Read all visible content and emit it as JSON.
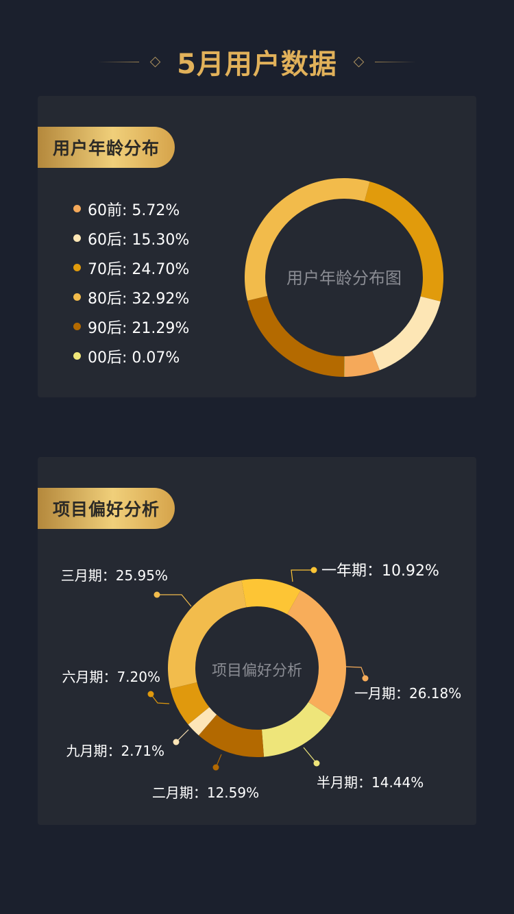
{
  "header": {
    "title": "5月用户数据"
  },
  "age_section": {
    "title": "用户年龄分布",
    "chart_center": "用户年龄分布图"
  },
  "pref_section": {
    "title": "项目偏好分析",
    "chart_center": "项目偏好分析"
  },
  "chart_data": [
    {
      "type": "pie",
      "title": "用户年龄分布",
      "center_label": "用户年龄分布图",
      "legend_position": "left",
      "slices": [
        {
          "label": "60前",
          "display": "60前: 5.72%",
          "value": 5.72,
          "color": "#f5a95a"
        },
        {
          "label": "60后",
          "display": "60后: 15.30%",
          "value": 15.3,
          "color": "#fde6b5"
        },
        {
          "label": "70后",
          "display": "70后: 24.70%",
          "value": 24.7,
          "color": "#e19b0c"
        },
        {
          "label": "80后",
          "display": "80后: 32.92%",
          "value": 32.92,
          "color": "#f2bb4b"
        },
        {
          "label": "90后",
          "display": "90后: 21.29%",
          "value": 21.29,
          "color": "#b46a00"
        },
        {
          "label": "00后",
          "display": "00后: 0.07%",
          "value": 0.07,
          "color": "#f0e77a"
        }
      ]
    },
    {
      "type": "pie",
      "title": "项目偏好分析",
      "center_label": "项目偏好分析",
      "slices": [
        {
          "label": "一年期",
          "display": "一年期：10.92%",
          "value": 10.92,
          "color": "#fdc535"
        },
        {
          "label": "一月期",
          "display": "一月期：26.18%",
          "value": 26.18,
          "color": "#f8ad5a"
        },
        {
          "label": "半月期",
          "display": "半月期：14.44%",
          "value": 14.44,
          "color": "#eee57a"
        },
        {
          "label": "二月期",
          "display": "二月期：12.59%",
          "value": 12.59,
          "color": "#b36900"
        },
        {
          "label": "九月期",
          "display": "九月期：2.71%",
          "value": 2.71,
          "color": "#fde5b7"
        },
        {
          "label": "六月期",
          "display": "六月期：7.20%",
          "value": 7.2,
          "color": "#e0990d"
        },
        {
          "label": "三月期",
          "display": "三月期：25.95%",
          "value": 25.95,
          "color": "#f2bc4c"
        }
      ]
    }
  ]
}
